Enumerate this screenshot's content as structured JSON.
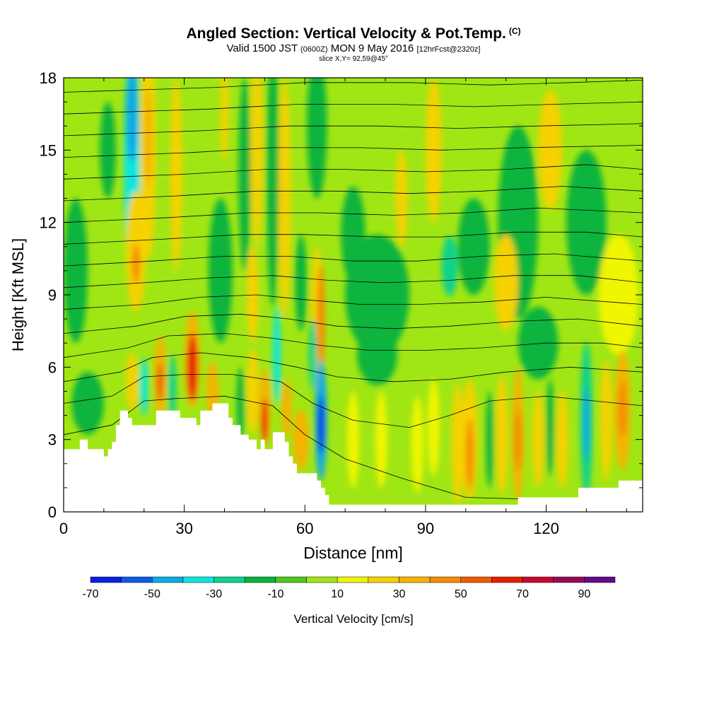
{
  "title": "Angled Section: Vertical Velocity & Pot.Temp.",
  "title_unit": "(C)",
  "subtitle": {
    "valid": "Valid 1500 JST",
    "utc": "(0600Z)",
    "date": "MON 9 May 2016",
    "fcst": "[12hrFcst@2320z]"
  },
  "slice_label": "slice X,Y= 92,59@45°",
  "chart_data": {
    "type": "heatmap",
    "xlabel": "Distance [nm]",
    "ylabel": "Height [Kft MSL]",
    "xlim": [
      0,
      144
    ],
    "ylim": [
      0,
      18
    ],
    "x_ticks": [
      0,
      30,
      60,
      90,
      120
    ],
    "x_tick_labels": [
      "0",
      "30",
      "60",
      "90",
      "120"
    ],
    "y_ticks": [
      0,
      3,
      6,
      9,
      12,
      15,
      18
    ],
    "y_tick_labels": [
      "0",
      "3",
      "6",
      "9",
      "12",
      "15",
      "18"
    ],
    "background_level": 5,
    "colorbar": {
      "label": "Vertical Velocity [cm/s]",
      "levels": [
        -70,
        -60,
        -50,
        -40,
        -30,
        -20,
        -10,
        0,
        10,
        20,
        30,
        40,
        50,
        60,
        70,
        80,
        90,
        100
      ],
      "tick_values": [
        -70,
        -50,
        -30,
        -10,
        10,
        30,
        50,
        70,
        90
      ],
      "tick_labels": [
        "-70",
        "-50",
        "-30",
        "-10",
        "10",
        "30",
        "50",
        "70",
        "90"
      ],
      "colors": [
        "#0a1ee6",
        "#0a5ae6",
        "#0aaae6",
        "#0ae6dc",
        "#0ad28c",
        "#0ab43c",
        "#50c81e",
        "#a0e614",
        "#f0f500",
        "#f5d200",
        "#f5b400",
        "#f58c00",
        "#f05a00",
        "#e61e00",
        "#c80a32",
        "#960a5a",
        "#640a8c"
      ]
    },
    "terrain_kft": [
      [
        0,
        2.6
      ],
      [
        4,
        2.6
      ],
      [
        4,
        3
      ],
      [
        6,
        3
      ],
      [
        6,
        2.6
      ],
      [
        10,
        2.6
      ],
      [
        10,
        2.3
      ],
      [
        11,
        2.3
      ],
      [
        11,
        2.6
      ],
      [
        12,
        2.6
      ],
      [
        12,
        2.9
      ],
      [
        13,
        2.9
      ],
      [
        13,
        3.6
      ],
      [
        14,
        3.6
      ],
      [
        14,
        4.2
      ],
      [
        16,
        4.2
      ],
      [
        16,
        3.9
      ],
      [
        17,
        3.9
      ],
      [
        17,
        3.6
      ],
      [
        23,
        3.6
      ],
      [
        23,
        4.2
      ],
      [
        29,
        4.2
      ],
      [
        29,
        3.9
      ],
      [
        33,
        3.9
      ],
      [
        33,
        3.6
      ],
      [
        34,
        3.6
      ],
      [
        34,
        4.2
      ],
      [
        37,
        4.2
      ],
      [
        37,
        4.5
      ],
      [
        41,
        4.5
      ],
      [
        41,
        3.9
      ],
      [
        42,
        3.9
      ],
      [
        42,
        3.6
      ],
      [
        44,
        3.6
      ],
      [
        44,
        3.2
      ],
      [
        46,
        3.2
      ],
      [
        46,
        3
      ],
      [
        48,
        3
      ],
      [
        48,
        2.6
      ],
      [
        49,
        2.6
      ],
      [
        49,
        3
      ],
      [
        50,
        3
      ],
      [
        50,
        2.6
      ],
      [
        52,
        2.6
      ],
      [
        52,
        3.3
      ],
      [
        55,
        3.3
      ],
      [
        55,
        2.9
      ],
      [
        56,
        2.9
      ],
      [
        56,
        2.3
      ],
      [
        57,
        2.3
      ],
      [
        57,
        2.0
      ],
      [
        58,
        2.0
      ],
      [
        58,
        1.6
      ],
      [
        63,
        1.6
      ],
      [
        63,
        1.3
      ],
      [
        64,
        1.3
      ],
      [
        64,
        1.0
      ],
      [
        65,
        1.0
      ],
      [
        65,
        0.7
      ],
      [
        66,
        0.7
      ],
      [
        66,
        0.3
      ],
      [
        113,
        0.3
      ],
      [
        113,
        0.6
      ],
      [
        128,
        0.6
      ],
      [
        128,
        1.0
      ],
      [
        138,
        1.0
      ],
      [
        138,
        1.3
      ],
      [
        144,
        1.3
      ]
    ],
    "velocity_cells": [
      {
        "x": 17,
        "y": 14.5,
        "w": 4,
        "h": 10,
        "value": -35
      },
      {
        "x": 17,
        "y": 16.5,
        "w": 3,
        "h": 4,
        "value": -45
      },
      {
        "x": 21,
        "y": 15,
        "w": 4,
        "h": 9,
        "value": 20
      },
      {
        "x": 21,
        "y": 15.5,
        "w": 2,
        "h": 4,
        "value": 30
      },
      {
        "x": 18,
        "y": 10.8,
        "w": 5,
        "h": 5,
        "value": 20
      },
      {
        "x": 18,
        "y": 10.3,
        "w": 2,
        "h": 1.6,
        "value": 45
      },
      {
        "x": 52,
        "y": 14,
        "w": 3,
        "h": 11,
        "value": -15
      },
      {
        "x": 55,
        "y": 13,
        "w": 3,
        "h": 10,
        "value": 20
      },
      {
        "x": 48,
        "y": 15,
        "w": 3,
        "h": 8,
        "value": 20
      },
      {
        "x": 45,
        "y": 14,
        "w": 3,
        "h": 8,
        "value": -15
      },
      {
        "x": 40,
        "y": 16.5,
        "w": 2,
        "h": 4,
        "value": 20
      },
      {
        "x": 28,
        "y": 14,
        "w": 3,
        "h": 8,
        "value": 20
      },
      {
        "x": 11,
        "y": 15,
        "w": 4,
        "h": 4,
        "value": -15
      },
      {
        "x": 3,
        "y": 10,
        "w": 6,
        "h": 6,
        "value": -15
      },
      {
        "x": 63,
        "y": 16,
        "w": 5,
        "h": 6,
        "value": -15
      },
      {
        "x": 72,
        "y": 11.5,
        "w": 6,
        "h": 4,
        "value": -15
      },
      {
        "x": 78,
        "y": 9,
        "w": 16,
        "h": 5,
        "value": -15
      },
      {
        "x": 96,
        "y": 10.2,
        "w": 4,
        "h": 2.5,
        "value": -30
      },
      {
        "x": 102,
        "y": 11,
        "w": 8,
        "h": 4,
        "value": -15
      },
      {
        "x": 113,
        "y": 12,
        "w": 10,
        "h": 8,
        "value": -15
      },
      {
        "x": 130,
        "y": 12,
        "w": 10,
        "h": 6,
        "value": -15
      },
      {
        "x": 121,
        "y": 15,
        "w": 6,
        "h": 5,
        "value": 20
      },
      {
        "x": 92,
        "y": 15,
        "w": 4,
        "h": 6,
        "value": 20
      },
      {
        "x": 84,
        "y": 13,
        "w": 3,
        "h": 4,
        "value": 20
      },
      {
        "x": 110,
        "y": 9.5,
        "w": 6,
        "h": 4,
        "value": 20
      },
      {
        "x": 138,
        "y": 9,
        "w": 10,
        "h": 5,
        "value": 15
      },
      {
        "x": 63,
        "y": 8,
        "w": 3,
        "h": 6,
        "value": 20
      },
      {
        "x": 64,
        "y": 8,
        "w": 2,
        "h": 4.5,
        "value": 45
      },
      {
        "x": 59,
        "y": 9.5,
        "w": 3,
        "h": 4,
        "value": -15
      },
      {
        "x": 39,
        "y": 10,
        "w": 6,
        "h": 6,
        "value": -15
      },
      {
        "x": 47,
        "y": 9,
        "w": 3,
        "h": 4,
        "value": 20
      },
      {
        "x": 17,
        "y": 5.4,
        "w": 3,
        "h": 2.4,
        "value": 20
      },
      {
        "x": 20,
        "y": 5.2,
        "w": 2,
        "h": 2.4,
        "value": -35
      },
      {
        "x": 24,
        "y": 5.6,
        "w": 3,
        "h": 3.5,
        "value": 30
      },
      {
        "x": 24,
        "y": 5.4,
        "w": 1.5,
        "h": 1.6,
        "value": 55
      },
      {
        "x": 27,
        "y": 5.2,
        "w": 2,
        "h": 2.6,
        "value": -25
      },
      {
        "x": 32,
        "y": 6.3,
        "w": 4,
        "h": 4,
        "value": 30
      },
      {
        "x": 32,
        "y": 6.0,
        "w": 2.5,
        "h": 2.8,
        "value": 65
      },
      {
        "x": 37,
        "y": 5,
        "w": 3,
        "h": 2.5,
        "value": 30
      },
      {
        "x": 44,
        "y": 4.5,
        "w": 2,
        "h": 3,
        "value": -15
      },
      {
        "x": 47,
        "y": 5,
        "w": 3,
        "h": 3.5,
        "value": 20
      },
      {
        "x": 50,
        "y": 4.3,
        "w": 3,
        "h": 3.2,
        "value": 35
      },
      {
        "x": 50,
        "y": 3.8,
        "w": 1.5,
        "h": 1.8,
        "value": 60
      },
      {
        "x": 53,
        "y": 6.5,
        "w": 2,
        "h": 4,
        "value": -35
      },
      {
        "x": 55.5,
        "y": 4.3,
        "w": 2.5,
        "h": 2.4,
        "value": 35
      },
      {
        "x": 59,
        "y": 3,
        "w": 4,
        "h": 2.5,
        "value": 30
      },
      {
        "x": 64,
        "y": 3.8,
        "w": 3,
        "h": 5,
        "value": -45
      },
      {
        "x": 64,
        "y": 3.6,
        "w": 1.6,
        "h": 2.4,
        "value": -65
      },
      {
        "x": 62,
        "y": 6.5,
        "w": 2,
        "h": 3,
        "value": -25
      },
      {
        "x": 72,
        "y": 3,
        "w": 3,
        "h": 4,
        "value": 15
      },
      {
        "x": 79,
        "y": 3,
        "w": 3,
        "h": 4,
        "value": 15
      },
      {
        "x": 88,
        "y": 2.8,
        "w": 3,
        "h": 4,
        "value": 15
      },
      {
        "x": 92,
        "y": 3.5,
        "w": 3,
        "h": 4,
        "value": 15
      },
      {
        "x": 98,
        "y": 2.8,
        "w": 3,
        "h": 5,
        "value": 20
      },
      {
        "x": 101,
        "y": 3,
        "w": 4,
        "h": 5,
        "value": 25
      },
      {
        "x": 101,
        "y": 2.4,
        "w": 2,
        "h": 3,
        "value": 45
      },
      {
        "x": 106,
        "y": 3,
        "w": 2,
        "h": 4,
        "value": -15
      },
      {
        "x": 109,
        "y": 3.2,
        "w": 3,
        "h": 5,
        "value": 20
      },
      {
        "x": 113,
        "y": 3.2,
        "w": 3,
        "h": 5.5,
        "value": 30
      },
      {
        "x": 113,
        "y": 3.0,
        "w": 1.8,
        "h": 2.6,
        "value": 45
      },
      {
        "x": 118,
        "y": 3,
        "w": 3,
        "h": 4,
        "value": 20
      },
      {
        "x": 121,
        "y": 3.5,
        "w": 2,
        "h": 4,
        "value": -15
      },
      {
        "x": 124,
        "y": 3,
        "w": 3,
        "h": 4,
        "value": 20
      },
      {
        "x": 130,
        "y": 3.8,
        "w": 3,
        "h": 6.5,
        "value": -30
      },
      {
        "x": 130,
        "y": 3.6,
        "w": 1.6,
        "h": 3,
        "value": -50
      },
      {
        "x": 135,
        "y": 3.8,
        "w": 3,
        "h": 5,
        "value": 20
      },
      {
        "x": 139,
        "y": 4.2,
        "w": 4,
        "h": 5,
        "value": 30
      },
      {
        "x": 139,
        "y": 4.3,
        "w": 2,
        "h": 2.4,
        "value": 45
      },
      {
        "x": 6,
        "y": 4.5,
        "w": 8,
        "h": 2.6,
        "value": -15
      },
      {
        "x": 78,
        "y": 6.5,
        "w": 10,
        "h": 2.5,
        "value": -15
      },
      {
        "x": 118,
        "y": 7,
        "w": 10,
        "h": 3,
        "value": -15
      }
    ],
    "theta_contours": [
      [
        [
          0,
          3.2
        ],
        [
          12,
          3.6
        ],
        [
          20,
          4.6
        ],
        [
          28,
          4.7
        ],
        [
          40,
          4.8
        ],
        [
          52,
          4.4
        ],
        [
          60,
          3.2
        ],
        [
          70,
          2.2
        ],
        [
          84,
          1.4
        ],
        [
          100,
          0.6
        ],
        [
          144,
          0.4
        ]
      ],
      [
        [
          0,
          4.5
        ],
        [
          12,
          4.8
        ],
        [
          20,
          5.6
        ],
        [
          30,
          5.7
        ],
        [
          42,
          5.7
        ],
        [
          54,
          5.4
        ],
        [
          62,
          4.5
        ],
        [
          72,
          3.8
        ],
        [
          86,
          3.5
        ],
        [
          96,
          4.0
        ],
        [
          106,
          4.6
        ],
        [
          120,
          4.8
        ],
        [
          132,
          4.6
        ],
        [
          144,
          4.4
        ]
      ],
      [
        [
          0,
          5.4
        ],
        [
          14,
          5.8
        ],
        [
          22,
          6.4
        ],
        [
          34,
          6.6
        ],
        [
          46,
          6.4
        ],
        [
          58,
          6.0
        ],
        [
          68,
          5.6
        ],
        [
          82,
          5.4
        ],
        [
          96,
          5.5
        ],
        [
          110,
          5.8
        ],
        [
          126,
          6.0
        ],
        [
          144,
          5.8
        ]
      ],
      [
        [
          0,
          6.4
        ],
        [
          16,
          6.8
        ],
        [
          26,
          7.3
        ],
        [
          40,
          7.4
        ],
        [
          52,
          7.2
        ],
        [
          64,
          6.9
        ],
        [
          76,
          6.7
        ],
        [
          90,
          6.7
        ],
        [
          104,
          6.8
        ],
        [
          120,
          7.0
        ],
        [
          134,
          7.0
        ],
        [
          144,
          6.8
        ]
      ],
      [
        [
          0,
          7.4
        ],
        [
          18,
          7.7
        ],
        [
          30,
          8.1
        ],
        [
          44,
          8.2
        ],
        [
          56,
          8.0
        ],
        [
          68,
          7.7
        ],
        [
          82,
          7.6
        ],
        [
          96,
          7.7
        ],
        [
          112,
          7.9
        ],
        [
          128,
          8.0
        ],
        [
          144,
          7.7
        ]
      ],
      [
        [
          0,
          8.4
        ],
        [
          20,
          8.6
        ],
        [
          34,
          8.9
        ],
        [
          48,
          9.0
        ],
        [
          60,
          8.8
        ],
        [
          74,
          8.6
        ],
        [
          88,
          8.6
        ],
        [
          104,
          8.7
        ],
        [
          120,
          8.9
        ],
        [
          144,
          8.6
        ]
      ],
      [
        [
          0,
          9.3
        ],
        [
          20,
          9.5
        ],
        [
          36,
          9.7
        ],
        [
          52,
          9.8
        ],
        [
          66,
          9.6
        ],
        [
          80,
          9.5
        ],
        [
          96,
          9.6
        ],
        [
          112,
          9.8
        ],
        [
          128,
          9.8
        ],
        [
          144,
          9.5
        ]
      ],
      [
        [
          0,
          10.2
        ],
        [
          22,
          10.4
        ],
        [
          40,
          10.6
        ],
        [
          56,
          10.6
        ],
        [
          72,
          10.4
        ],
        [
          88,
          10.4
        ],
        [
          104,
          10.6
        ],
        [
          122,
          10.7
        ],
        [
          144,
          10.4
        ]
      ],
      [
        [
          0,
          11.1
        ],
        [
          24,
          11.3
        ],
        [
          44,
          11.5
        ],
        [
          60,
          11.5
        ],
        [
          78,
          11.4
        ],
        [
          94,
          11.4
        ],
        [
          112,
          11.6
        ],
        [
          130,
          11.6
        ],
        [
          144,
          11.4
        ]
      ],
      [
        [
          0,
          12.0
        ],
        [
          26,
          12.2
        ],
        [
          46,
          12.4
        ],
        [
          64,
          12.4
        ],
        [
          82,
          12.3
        ],
        [
          100,
          12.4
        ],
        [
          118,
          12.6
        ],
        [
          144,
          12.4
        ]
      ],
      [
        [
          0,
          12.9
        ],
        [
          28,
          13.1
        ],
        [
          48,
          13.3
        ],
        [
          68,
          13.3
        ],
        [
          86,
          13.2
        ],
        [
          104,
          13.3
        ],
        [
          124,
          13.5
        ],
        [
          144,
          13.3
        ]
      ],
      [
        [
          0,
          13.8
        ],
        [
          30,
          14.0
        ],
        [
          50,
          14.2
        ],
        [
          70,
          14.2
        ],
        [
          90,
          14.1
        ],
        [
          110,
          14.2
        ],
        [
          130,
          14.4
        ],
        [
          144,
          14.2
        ]
      ],
      [
        [
          0,
          14.7
        ],
        [
          32,
          14.9
        ],
        [
          52,
          15.1
        ],
        [
          74,
          15.1
        ],
        [
          94,
          15.0
        ],
        [
          114,
          15.1
        ],
        [
          144,
          15.2
        ]
      ],
      [
        [
          0,
          15.6
        ],
        [
          34,
          15.8
        ],
        [
          56,
          16.0
        ],
        [
          78,
          16.0
        ],
        [
          98,
          15.9
        ],
        [
          118,
          16.0
        ],
        [
          144,
          16.1
        ]
      ],
      [
        [
          0,
          16.5
        ],
        [
          36,
          16.7
        ],
        [
          58,
          16.9
        ],
        [
          82,
          16.9
        ],
        [
          102,
          16.8
        ],
        [
          122,
          16.9
        ],
        [
          144,
          17.0
        ]
      ],
      [
        [
          0,
          17.4
        ],
        [
          38,
          17.6
        ],
        [
          60,
          17.8
        ],
        [
          86,
          17.8
        ],
        [
          106,
          17.7
        ],
        [
          126,
          17.8
        ],
        [
          144,
          17.9
        ]
      ]
    ]
  }
}
